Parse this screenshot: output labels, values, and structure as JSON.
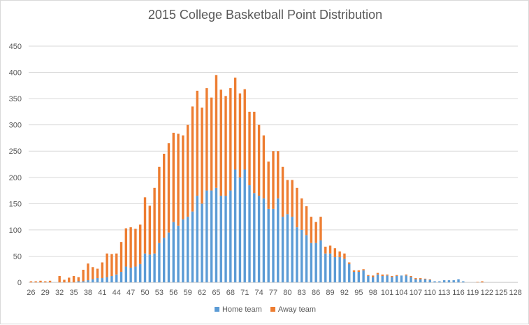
{
  "chart_data": {
    "type": "bar",
    "stacked": true,
    "title": "2015 College Basketball Point Distribution",
    "xlabel": "",
    "ylabel": "",
    "ylim": [
      0,
      450
    ],
    "yticks": [
      0,
      50,
      100,
      150,
      200,
      250,
      300,
      350,
      400,
      450
    ],
    "grid": true,
    "legend": "bottom",
    "x": [
      26,
      27,
      28,
      29,
      30,
      31,
      32,
      33,
      34,
      35,
      36,
      37,
      38,
      39,
      40,
      41,
      42,
      43,
      44,
      45,
      46,
      47,
      48,
      49,
      50,
      51,
      52,
      53,
      54,
      55,
      56,
      57,
      58,
      59,
      60,
      61,
      62,
      63,
      64,
      65,
      66,
      67,
      68,
      69,
      70,
      71,
      72,
      73,
      74,
      75,
      76,
      77,
      78,
      79,
      80,
      81,
      82,
      83,
      84,
      85,
      86,
      87,
      88,
      89,
      90,
      91,
      92,
      93,
      94,
      95,
      96,
      97,
      98,
      99,
      100,
      101,
      102,
      103,
      104,
      105,
      106,
      107,
      108,
      109,
      110,
      111,
      112,
      113,
      114,
      115,
      116,
      117,
      118,
      119,
      120,
      121,
      122,
      123,
      124,
      125,
      126,
      127,
      128
    ],
    "xtick_labels": [
      "26",
      "29",
      "32",
      "35",
      "38",
      "41",
      "44",
      "47",
      "50",
      "53",
      "56",
      "59",
      "62",
      "65",
      "68",
      "71",
      "74",
      "77",
      "80",
      "83",
      "86",
      "89",
      "92",
      "95",
      "98",
      "101",
      "104",
      "107",
      "110",
      "113",
      "116",
      "119",
      "122",
      "125",
      "128"
    ],
    "series": [
      {
        "name": "Home team",
        "color": "#5b9bd5",
        "values": [
          0,
          0,
          0,
          0,
          0,
          0,
          0,
          0,
          0,
          0,
          2,
          2,
          4,
          6,
          8,
          8,
          10,
          12,
          15,
          20,
          30,
          28,
          30,
          35,
          55,
          53,
          55,
          75,
          85,
          95,
          115,
          108,
          120,
          125,
          135,
          165,
          150,
          175,
          175,
          180,
          165,
          165,
          175,
          215,
          200,
          215,
          185,
          170,
          165,
          160,
          140,
          140,
          160,
          125,
          130,
          125,
          105,
          100,
          90,
          75,
          75,
          80,
          55,
          55,
          48,
          48,
          45,
          35,
          20,
          20,
          23,
          12,
          10,
          15,
          12,
          13,
          10,
          12,
          13,
          13,
          10,
          6,
          6,
          6,
          5,
          2,
          2,
          4,
          4,
          4,
          6,
          2,
          0,
          0,
          0,
          0,
          0,
          0,
          0,
          0,
          0,
          0,
          0
        ]
      },
      {
        "name": "Away team",
        "color": "#ed7d31",
        "values": [
          2,
          2,
          3,
          2,
          3,
          0,
          12,
          5,
          9,
          12,
          8,
          22,
          32,
          23,
          18,
          30,
          45,
          42,
          40,
          57,
          73,
          77,
          72,
          75,
          107,
          93,
          125,
          145,
          160,
          170,
          170,
          175,
          160,
          175,
          200,
          200,
          183,
          195,
          177,
          215,
          202,
          190,
          195,
          175,
          160,
          153,
          140,
          155,
          135,
          120,
          90,
          110,
          90,
          95,
          65,
          70,
          75,
          60,
          55,
          50,
          40,
          45,
          13,
          15,
          17,
          11,
          10,
          3,
          3,
          3,
          2,
          2,
          3,
          3,
          3,
          2,
          2,
          2,
          0,
          2,
          2,
          2,
          2,
          1,
          1,
          0,
          0,
          0,
          0,
          0,
          0,
          0,
          0,
          0,
          1,
          2,
          0,
          0,
          0,
          0,
          0,
          0,
          0
        ]
      }
    ]
  }
}
